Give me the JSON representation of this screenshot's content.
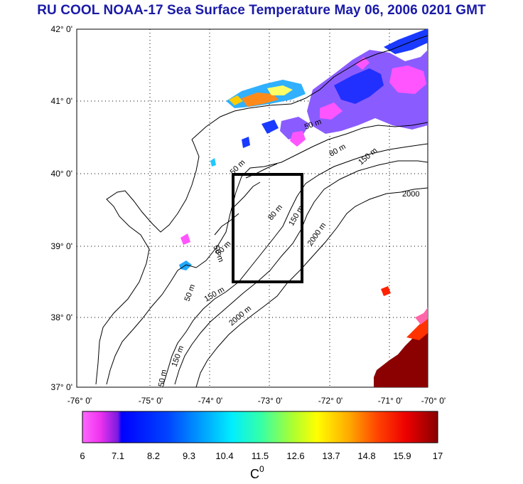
{
  "title": "RU COOL  NOAA-17 Sea Surface Temperature May 06, 2006 0201 GMT",
  "axes": {
    "lat_labels": [
      "42° 0'",
      "41° 0'",
      "40° 0'",
      "39° 0'",
      "38° 0'",
      "37° 0'"
    ],
    "lon_labels": [
      "-76° 0'",
      "-75° 0'",
      "-74° 0'",
      "-73° 0'",
      "-72° 0'",
      "-71° 0'",
      "-70° 0'"
    ]
  },
  "contour_labels": [
    "50 m",
    "80 m",
    "150 m",
    "2000 m",
    "2000"
  ],
  "colorbar": {
    "ticks": [
      "6",
      "7.1",
      "8.2",
      "9.3",
      "10.4",
      "11.5",
      "12.6",
      "13.7",
      "14.8",
      "15.9",
      "17"
    ],
    "unit": "C",
    "unit_sup": "0",
    "min": 6,
    "max": 17
  },
  "colors": {
    "title": "#1a1aa8",
    "land_warm": "#8b0000",
    "box": "#000000"
  }
}
